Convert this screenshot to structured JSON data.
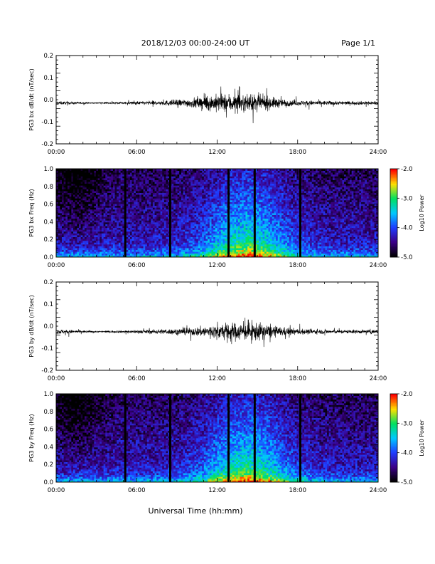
{
  "header": {
    "title": "2018/12/03  00:00-24:00 UT",
    "page": "Page 1/1"
  },
  "colors": {
    "background": "#ffffff",
    "axes": "#000000",
    "colormap": [
      "#000000",
      "#3b0087",
      "#1f3cff",
      "#00c8ff",
      "#00e060",
      "#ffe000",
      "#ff0000"
    ]
  },
  "chart_data": [
    {
      "type": "line",
      "ylabel": "PG3 bx dB/dt (nT/sec)",
      "xlim": [
        0,
        24
      ],
      "ylim": [
        -0.2,
        0.2
      ],
      "x_ticks": [
        "00:00",
        "06:00",
        "12:00",
        "18:00",
        "24:00"
      ],
      "y_ticks": [
        "-0.2",
        "-0.1",
        "0.0",
        "0.1",
        "0.2"
      ],
      "baseline": -0.015,
      "envelope": {
        "x": [
          0,
          3,
          5,
          8,
          10,
          11,
          12,
          13,
          14,
          15,
          16,
          17,
          18,
          19,
          21,
          24
        ],
        "amplitude": [
          0.015,
          0.004,
          0.01,
          0.02,
          0.035,
          0.06,
          0.07,
          0.08,
          0.065,
          0.07,
          0.05,
          0.03,
          0.02,
          0.02,
          0.015,
          0.015
        ]
      }
    },
    {
      "type": "heatmap",
      "ylabel": "PG3 bx Freq (Hz)",
      "xlim": [
        0,
        24
      ],
      "ylim": [
        0.0,
        1.0
      ],
      "x_ticks": [
        "00:00",
        "06:00",
        "12:00",
        "18:00",
        "24:00"
      ],
      "y_ticks": [
        "0.0",
        "0.2",
        "0.4",
        "0.6",
        "0.8",
        "1.0"
      ],
      "colorbar": {
        "label": "Log10 Power",
        "range": [
          -5.0,
          -2.0
        ],
        "ticks": [
          "-2.0",
          "-3.0",
          "-4.0",
          "-5.0"
        ]
      },
      "data_gaps_hours": [
        5.15,
        8.5,
        12.85,
        14.8,
        18.2
      ]
    },
    {
      "type": "line",
      "ylabel": "PG3 by dB/dt (nT/sec)",
      "xlim": [
        0,
        24
      ],
      "ylim": [
        -0.2,
        0.2
      ],
      "x_ticks": [
        "00:00",
        "06:00",
        "12:00",
        "18:00",
        "24:00"
      ],
      "y_ticks": [
        "-0.2",
        "-0.1",
        "0.0",
        "0.1",
        "0.2"
      ],
      "baseline": -0.025,
      "envelope": {
        "x": [
          0,
          3,
          5,
          8,
          10,
          11,
          12,
          13,
          14,
          15,
          16,
          17,
          18,
          19,
          21,
          24
        ],
        "amplitude": [
          0.02,
          0.006,
          0.01,
          0.02,
          0.03,
          0.045,
          0.06,
          0.075,
          0.07,
          0.075,
          0.05,
          0.035,
          0.025,
          0.02,
          0.015,
          0.015
        ]
      }
    },
    {
      "type": "heatmap",
      "ylabel": "PG3 by Freq (Hz)",
      "xlim": [
        0,
        24
      ],
      "ylim": [
        0.0,
        1.0
      ],
      "x_ticks": [
        "00:00",
        "06:00",
        "12:00",
        "18:00",
        "24:00"
      ],
      "y_ticks": [
        "0.0",
        "0.2",
        "0.4",
        "0.6",
        "0.8",
        "1.0"
      ],
      "colorbar": {
        "label": "Log10 Power",
        "range": [
          -5.0,
          -2.0
        ],
        "ticks": [
          "-2.0",
          "-3.0",
          "-4.0",
          "-5.0"
        ]
      },
      "data_gaps_hours": [
        5.15,
        8.5,
        12.85,
        14.8,
        18.2
      ]
    }
  ],
  "footer": {
    "xlabel": "Universal Time (hh:mm)"
  }
}
